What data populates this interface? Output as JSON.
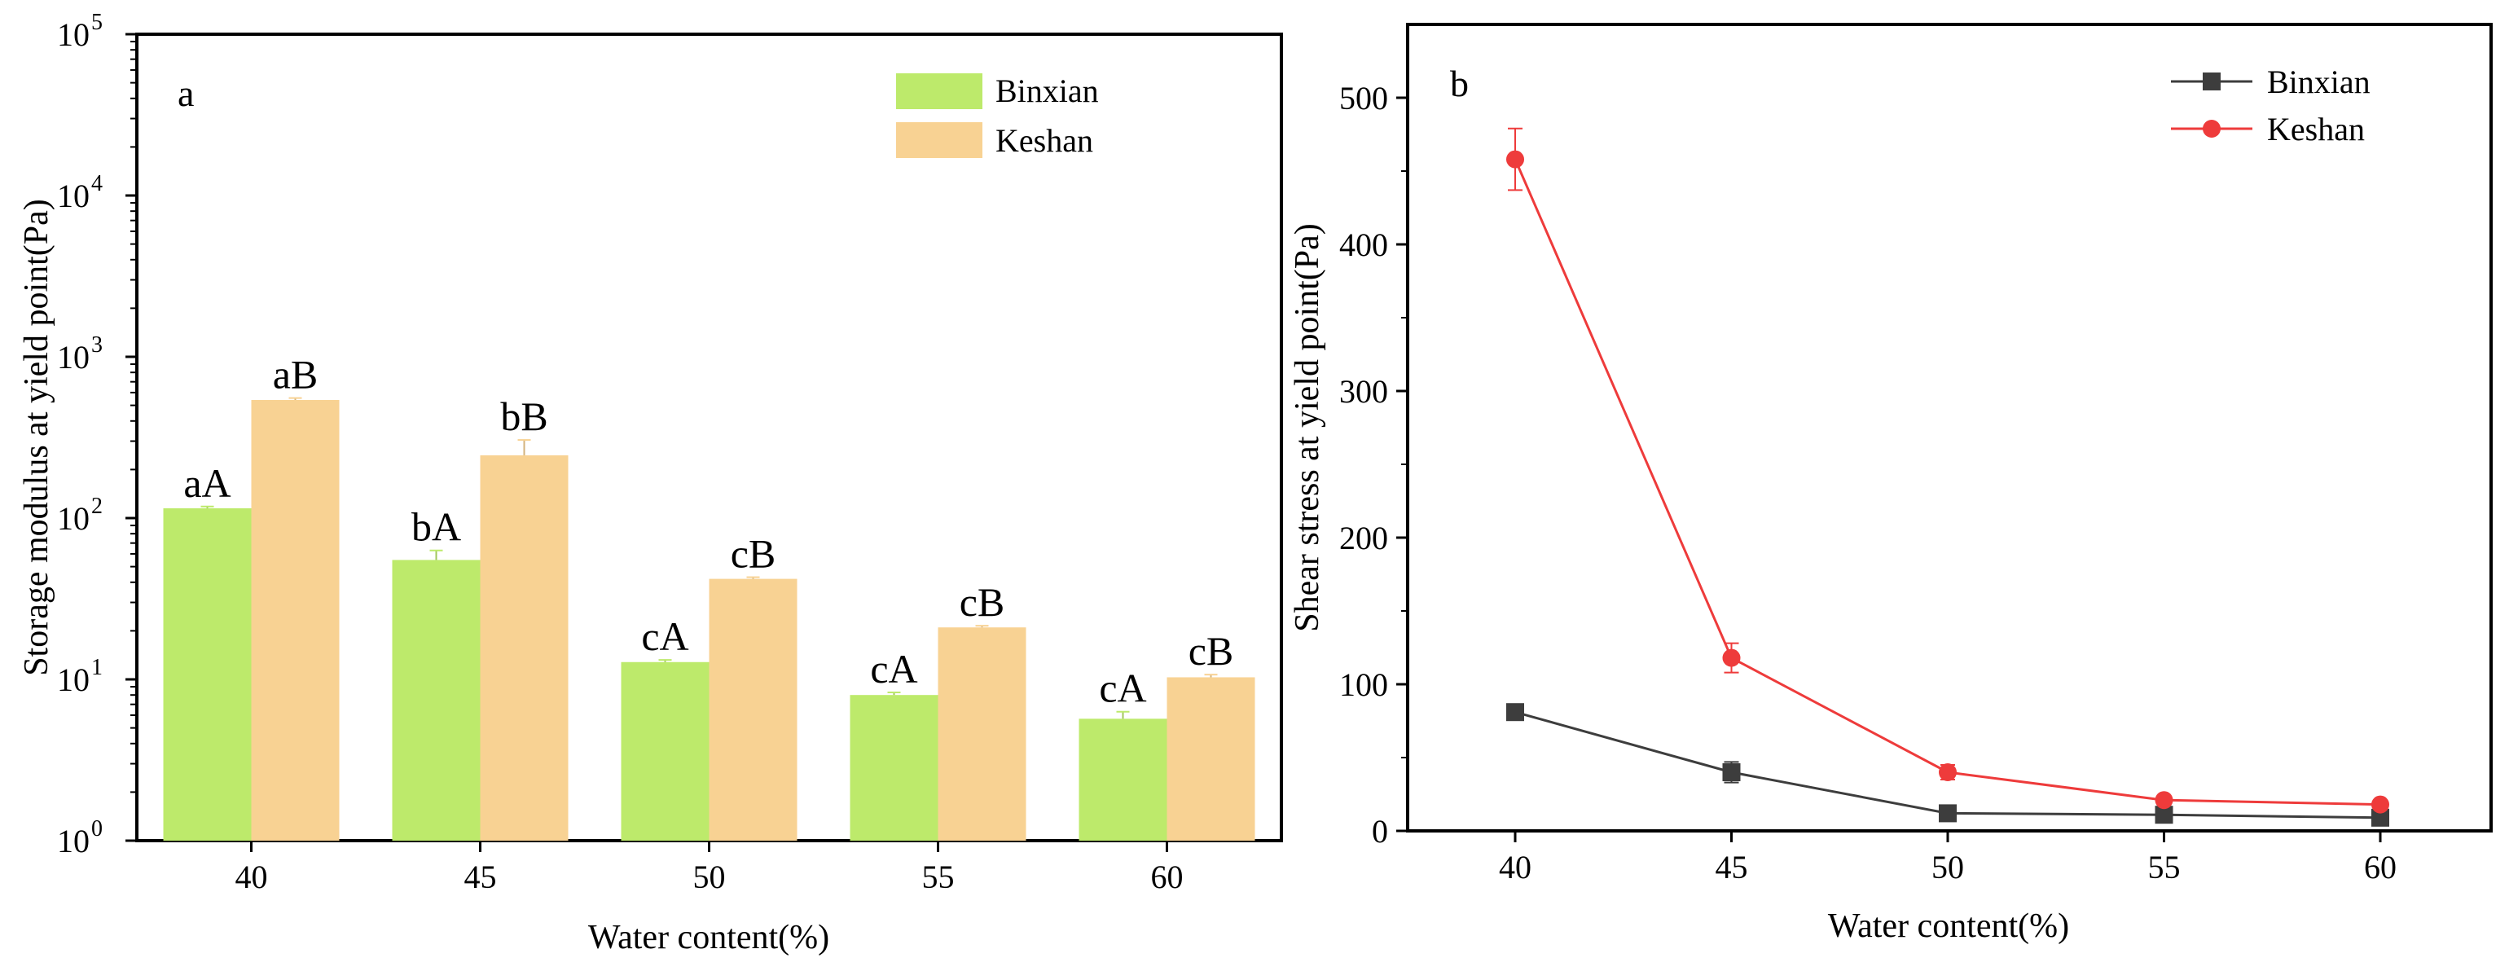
{
  "chart_data": [
    {
      "type": "bar",
      "panel_label": "a",
      "scale": "log",
      "title": "",
      "xlabel": "Water content(%)",
      "ylabel": "Storage modulus at yield point(Pa)",
      "categories": [
        "40",
        "45",
        "50",
        "55",
        "60"
      ],
      "ylim": [
        1,
        100000
      ],
      "yticks": [
        {
          "base": "10",
          "exp": "0"
        },
        {
          "base": "10",
          "exp": "1"
        },
        {
          "base": "10",
          "exp": "2"
        },
        {
          "base": "10",
          "exp": "3"
        },
        {
          "base": "10",
          "exp": "4"
        },
        {
          "base": "10",
          "exp": "5"
        }
      ],
      "legend_position": "top-right",
      "series": [
        {
          "name": "Binxian",
          "color": "#bdea6b",
          "values": [
            115,
            55,
            12.8,
            8.0,
            5.7
          ],
          "errors": [
            3,
            8,
            0.4,
            0.3,
            0.6
          ],
          "labels": [
            "aA",
            "bA",
            "cA",
            "cA",
            "cA"
          ]
        },
        {
          "name": "Keshan",
          "color": "#f8d293",
          "values": [
            540,
            245,
            42,
            21,
            10.3
          ],
          "errors": [
            15,
            60,
            1,
            0.5,
            0.4
          ],
          "labels": [
            "aB",
            "bB",
            "cB",
            "cB",
            "cB"
          ]
        }
      ]
    },
    {
      "type": "line",
      "panel_label": "b",
      "title": "",
      "xlabel": "Water content(%)",
      "ylabel": "Shear stress at yield point(Pa)",
      "x": [
        "40",
        "45",
        "50",
        "55",
        "60"
      ],
      "ylim": [
        0,
        550
      ],
      "yticks": [
        "0",
        "100",
        "200",
        "300",
        "400",
        "500"
      ],
      "legend_position": "top-right",
      "series": [
        {
          "name": "Binxian",
          "color": "#3d3d3d",
          "marker": "square",
          "values": [
            81,
            40,
            12,
            11,
            9
          ],
          "errors": [
            2,
            7,
            2,
            1,
            1
          ]
        },
        {
          "name": "Keshan",
          "color": "#ee3b3b",
          "marker": "circle",
          "values": [
            458,
            118,
            40,
            21,
            18
          ],
          "errors": [
            21,
            10,
            5,
            2,
            2
          ]
        }
      ]
    }
  ]
}
